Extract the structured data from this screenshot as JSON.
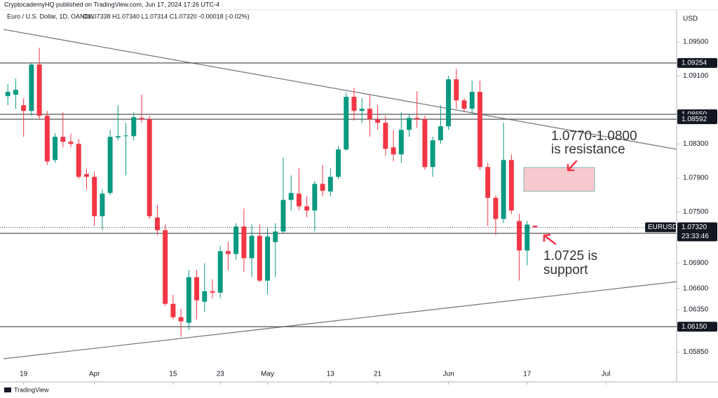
{
  "chart_data": {
    "type": "candlestick",
    "publisher": "CryptocademyHQ published on TradingView.com, Jun 17, 2024 17:26 UTC-4",
    "title": "Euro / U.S. Dollar, 1D, OANDA",
    "ohlc_text": "O1.07338 H1.07340 L1.07314 C1.07320 -0.00018 (-0.02%)",
    "currency": "USD",
    "symbol": "EURUSD",
    "countdown": "23:33:46",
    "brand": "TradingView",
    "up_color": "#089981",
    "down_color": "#f23645",
    "x": [
      "2024-03-15",
      "2024-03-18",
      "2024-03-19",
      "2024-03-20",
      "2024-03-21",
      "2024-03-22",
      "2024-03-25",
      "2024-03-26",
      "2024-03-27",
      "2024-03-28",
      "2024-03-29",
      "2024-04-01",
      "2024-04-02",
      "2024-04-03",
      "2024-04-04",
      "2024-04-05",
      "2024-04-08",
      "2024-04-09",
      "2024-04-10",
      "2024-04-11",
      "2024-04-12",
      "2024-04-15",
      "2024-04-16",
      "2024-04-17",
      "2024-04-18",
      "2024-04-19",
      "2024-04-22",
      "2024-04-23",
      "2024-04-24",
      "2024-04-25",
      "2024-04-26",
      "2024-04-29",
      "2024-04-30",
      "2024-05-01",
      "2024-05-02",
      "2024-05-03",
      "2024-05-06",
      "2024-05-07",
      "2024-05-08",
      "2024-05-09",
      "2024-05-10",
      "2024-05-13",
      "2024-05-14",
      "2024-05-15",
      "2024-05-16",
      "2024-05-17",
      "2024-05-20",
      "2024-05-21",
      "2024-05-22",
      "2024-05-23",
      "2024-05-24",
      "2024-05-27",
      "2024-05-28",
      "2024-05-29",
      "2024-05-30",
      "2024-05-31",
      "2024-06-03",
      "2024-06-04",
      "2024-06-05",
      "2024-06-06",
      "2024-06-07",
      "2024-06-10",
      "2024-06-11",
      "2024-06-12",
      "2024-06-13",
      "2024-06-14",
      "2024-06-17",
      "2024-06-18"
    ],
    "open": [
      1.08864,
      1.08881,
      1.08757,
      1.0869,
      1.09236,
      1.08633,
      1.08112,
      1.08385,
      1.08327,
      1.08302,
      1.07947,
      1.07914,
      1.07451,
      1.07724,
      1.08377,
      1.08393,
      1.08393,
      1.08608,
      1.08591,
      1.07435,
      1.07286,
      1.06419,
      1.06262,
      1.06196,
      1.06733,
      1.06444,
      1.06568,
      1.06551,
      1.07039,
      1.07006,
      1.07328,
      1.06956,
      1.0722,
      1.06692,
      1.07146,
      1.0727,
      1.07642,
      1.07716,
      1.07567,
      1.07518,
      1.07831,
      1.07741,
      1.07914,
      1.08236,
      1.08856,
      1.0869,
      1.08715,
      1.08591,
      1.0855,
      1.08261,
      1.08178,
      1.08467,
      1.08608,
      1.08591,
      1.0803,
      1.08344,
      1.08509,
      1.09062,
      1.08814,
      1.08715,
      1.08914,
      1.0803,
      1.07666,
      1.07418,
      1.08112,
      1.07394,
      1.07047,
      1.07338
    ],
    "high": [
      1.09004,
      1.0907,
      1.08839,
      1.09252,
      1.09434,
      1.0869,
      1.08426,
      1.08674,
      1.08426,
      1.0836,
      1.08013,
      1.07972,
      1.07765,
      1.08467,
      1.08757,
      1.0855,
      1.08674,
      1.08881,
      1.08633,
      1.07584,
      1.07352,
      1.06526,
      1.06361,
      1.06816,
      1.06816,
      1.06898,
      1.06708,
      1.07105,
      1.07146,
      1.07369,
      1.07542,
      1.07352,
      1.07352,
      1.07311,
      1.07369,
      1.08137,
      1.07931,
      1.08013,
      1.07683,
      1.07864,
      1.08054,
      1.08013,
      1.08278,
      1.08905,
      1.08963,
      1.08839,
      1.08881,
      1.08757,
      1.08633,
      1.08467,
      1.08674,
      1.08657,
      1.08922,
      1.08633,
      1.08385,
      1.08757,
      1.09104,
      1.09186,
      1.08839,
      1.09046,
      1.09046,
      1.08079,
      1.07699,
      1.0855,
      1.08178,
      1.07476,
      1.07394,
      1.0734
    ],
    "low": [
      1.08757,
      1.08715,
      1.08385,
      1.08633,
      1.08591,
      1.08054,
      1.08079,
      1.08261,
      1.08261,
      1.07889,
      1.07765,
      1.07336,
      1.07286,
      1.07699,
      1.08344,
      1.07931,
      1.08344,
      1.0855,
      1.07418,
      1.07229,
      1.06394,
      1.06237,
      1.06031,
      1.06113,
      1.06237,
      1.0632,
      1.06485,
      1.06485,
      1.06816,
      1.06939,
      1.06791,
      1.06733,
      1.06675,
      1.06526,
      1.06733,
      1.07253,
      1.07518,
      1.07518,
      1.07435,
      1.0727,
      1.07683,
      1.07683,
      1.07889,
      1.0822,
      1.08575,
      1.0855,
      1.08385,
      1.08467,
      1.08162,
      1.08096,
      1.08079,
      1.08385,
      1.08492,
      1.07997,
      1.07914,
      1.08302,
      1.08467,
      1.08715,
      1.08674,
      1.08657,
      1.07997,
      1.07336,
      1.07229,
      1.07369,
      1.07476,
      1.06692,
      1.06873,
      1.07314
    ],
    "close": [
      1.08914,
      1.08938,
      1.0869,
      1.09236,
      1.08633,
      1.08096,
      1.08385,
      1.08327,
      1.08302,
      1.07914,
      1.07914,
      1.07451,
      1.07716,
      1.08385,
      1.08393,
      1.08401,
      1.08616,
      1.08591,
      1.07451,
      1.07286,
      1.06419,
      1.06262,
      1.06213,
      1.06733,
      1.0646,
      1.06568,
      1.06551,
      1.07039,
      1.07006,
      1.07328,
      1.06956,
      1.0722,
      1.06692,
      1.07212,
      1.0727,
      1.07642,
      1.07724,
      1.07567,
      1.07518,
      1.07831,
      1.07749,
      1.07914,
      1.08236,
      1.08856,
      1.0869,
      1.08715,
      1.08591,
      1.0855,
      1.08244,
      1.08178,
      1.08467,
      1.08608,
      1.08591,
      1.0803,
      1.08344,
      1.08509,
      1.09062,
      1.08814,
      1.08715,
      1.08914,
      1.0803,
      1.07666,
      1.07418,
      1.08112,
      1.07518,
      1.07047,
      1.07352,
      1.0732
    ],
    "xlim": [
      "2024-03-14",
      "2024-07-12"
    ],
    "xticks": [
      {
        "value": "2024-03-19",
        "label": "19"
      },
      {
        "value": "2024-04-01",
        "label": "Apr"
      },
      {
        "value": "2024-04-15",
        "label": "15"
      },
      {
        "value": "2024-04-23",
        "label": "23"
      },
      {
        "value": "2024-05-01",
        "label": "May"
      },
      {
        "value": "2024-05-13",
        "label": "13"
      },
      {
        "value": "2024-05-21",
        "label": "21"
      },
      {
        "value": "2024-06-03",
        "label": "Jun"
      },
      {
        "value": "2024-06-17",
        "label": "17"
      },
      {
        "value": "2024-07-01",
        "label": "Jul"
      }
    ],
    "ylim": [
      1.0569,
      1.0988
    ],
    "yticks": [
      {
        "value": 1.095,
        "label": "1.09500"
      },
      {
        "value": 1.091,
        "label": "1.09100"
      },
      {
        "value": 1.083,
        "label": "1.08300"
      },
      {
        "value": 1.079,
        "label": "1.07900"
      },
      {
        "value": 1.075,
        "label": "1.07500"
      },
      {
        "value": 1.069,
        "label": "1.06900"
      },
      {
        "value": 1.066,
        "label": "1.06600"
      },
      {
        "value": 1.0635,
        "label": "1.06350"
      },
      {
        "value": 1.0585,
        "label": "1.05850"
      }
    ],
    "levels": [
      1.09254,
      {
        "value": 1.0865,
        "label": "1.08650"
      },
      1.08592,
      1.07249,
      {
        "value": 1.0615,
        "label": "1.06150"
      }
    ],
    "last_price": {
      "value": 1.0732,
      "label": "1.07320"
    },
    "annotations": [
      "1.0770-1.0800",
      "is resistance",
      "1.0725 is",
      "support"
    ]
  }
}
